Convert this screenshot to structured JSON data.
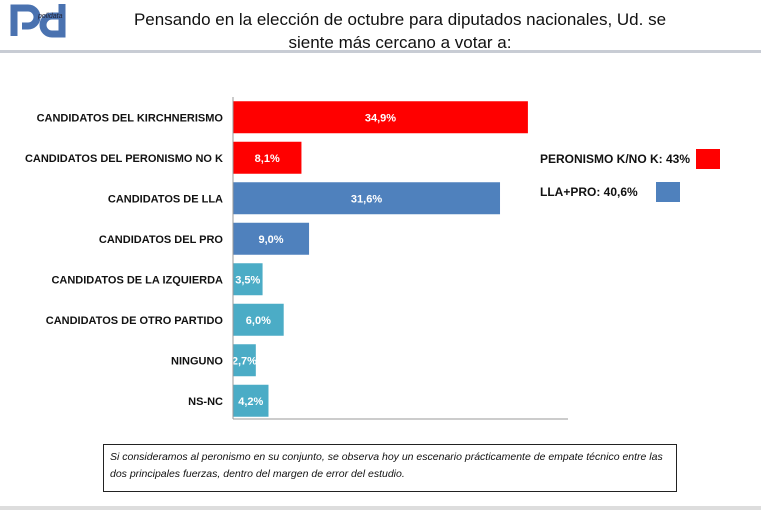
{
  "logo": {
    "text": "polidata"
  },
  "title": "Pensando en la elección de octubre para diputados nacionales, Ud. se siente más cercano a votar a:",
  "chart_data": {
    "type": "bar",
    "orientation": "horizontal",
    "title": "Pensando en la elección de octubre para diputados nacionales, Ud. se siente más cercano a votar a:",
    "categories": [
      "CANDIDATOS DEL KIRCHNERISMO",
      "CANDIDATOS DEL PERONISMO NO K",
      "CANDIDATOS DE LLA",
      "CANDIDATOS DEL PRO",
      "CANDIDATOS DE LA IZQUIERDA",
      "CANDIDATOS DE OTRO PARTIDO",
      "NINGUNO",
      "NS-NC"
    ],
    "values": [
      34.9,
      8.1,
      31.6,
      9.0,
      3.5,
      6.0,
      2.7,
      4.2
    ],
    "labels": [
      "34,9%",
      "8,1%",
      "31,6%",
      "9,0%",
      "3,5%",
      "6,0%",
      "2,7%",
      "4,2%"
    ],
    "colors": [
      "#ff0000",
      "#ff0000",
      "#4f81bd",
      "#4f81bd",
      "#4bacc6",
      "#4bacc6",
      "#4bacc6",
      "#4bacc6"
    ],
    "grid": false
  },
  "legend": [
    {
      "label": "PERONISMO K/NO K: 43%",
      "color": "#ff0000"
    },
    {
      "label": "LLA+PRO: 40,6%",
      "color": "#4f81bd"
    }
  ],
  "note": "Si consideramos al peronismo en su conjunto, se observa hoy un escenario prácticamente de empate técnico entre las dos principales fuerzas, dentro del margen de error del estudio."
}
